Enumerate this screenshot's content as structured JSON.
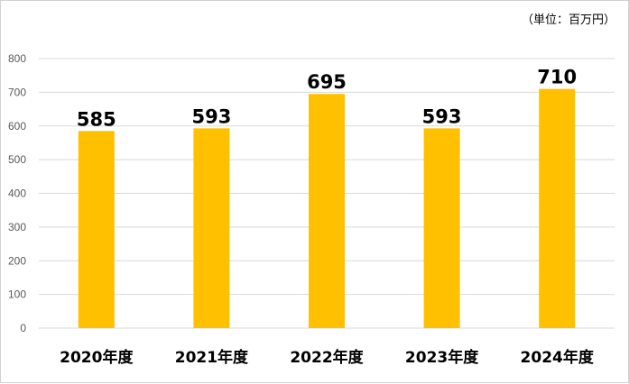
{
  "chart_data": {
    "type": "bar",
    "unit_note": "（単位：百万円）",
    "categories": [
      "2020年度",
      "2021年度",
      "2022年度",
      "2023年度",
      "2024年度"
    ],
    "values": [
      585,
      593,
      695,
      593,
      710
    ],
    "data_labels": [
      "585",
      "593",
      "695",
      "593",
      "710"
    ],
    "yticks": [
      "0",
      "100",
      "200",
      "300",
      "400",
      "500",
      "600",
      "700",
      "800"
    ],
    "ylim": [
      0,
      800
    ],
    "grid": true,
    "bar_color": "#FFC000",
    "grid_color": "#d9d9d9"
  }
}
